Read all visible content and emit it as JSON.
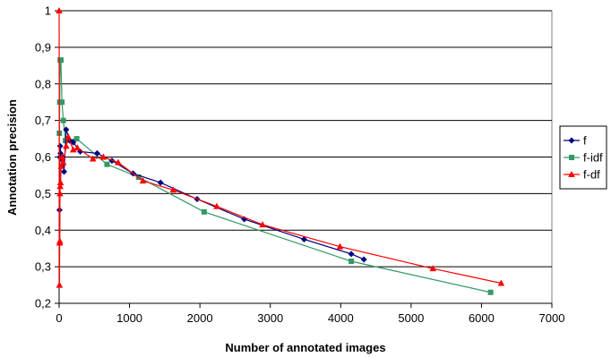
{
  "chart_data": {
    "type": "scatter",
    "xlabel": "Number of annotated images",
    "ylabel": "Annotation precision",
    "xlim": [
      0,
      7000
    ],
    "ylim": [
      0.2,
      1
    ],
    "x_ticks": [
      0,
      1000,
      2000,
      3000,
      4000,
      5000,
      6000,
      7000
    ],
    "x_tick_labels": [
      "0",
      "1000",
      "2000",
      "3000",
      "4000",
      "5000",
      "6000",
      "7000"
    ],
    "y_ticks": [
      0.2,
      0.3,
      0.4,
      0.5,
      0.6,
      0.7,
      0.8,
      0.9,
      1.0
    ],
    "y_tick_labels": [
      "0,2",
      "0,3",
      "0,4",
      "0,5",
      "0,6",
      "0,7",
      "0,8",
      "0,9",
      "1"
    ],
    "grid": "horizontal",
    "legend_position": "right",
    "series": [
      {
        "name": "f",
        "color": "#00007f",
        "marker": "diamond",
        "points": [
          [
            5,
            0.455
          ],
          [
            10,
            0.6
          ],
          [
            15,
            0.63
          ],
          [
            20,
            0.61
          ],
          [
            30,
            0.595
          ],
          [
            50,
            0.6
          ],
          [
            70,
            0.56
          ],
          [
            100,
            0.675
          ],
          [
            150,
            0.645
          ],
          [
            200,
            0.64
          ],
          [
            300,
            0.615
          ],
          [
            540,
            0.61
          ],
          [
            750,
            0.59
          ],
          [
            1050,
            0.555
          ],
          [
            1440,
            0.53
          ],
          [
            1960,
            0.485
          ],
          [
            2630,
            0.43
          ],
          [
            3480,
            0.375
          ],
          [
            4150,
            0.335
          ],
          [
            4330,
            0.32
          ]
        ]
      },
      {
        "name": "f-idf",
        "color": "#339966",
        "marker": "square",
        "points": [
          [
            3,
            0.665
          ],
          [
            8,
            0.75
          ],
          [
            15,
            0.865
          ],
          [
            25,
            0.865
          ],
          [
            40,
            0.75
          ],
          [
            60,
            0.7
          ],
          [
            90,
            0.645
          ],
          [
            250,
            0.65
          ],
          [
            680,
            0.58
          ],
          [
            1130,
            0.545
          ],
          [
            2060,
            0.45
          ],
          [
            4150,
            0.315
          ],
          [
            6130,
            0.23
          ]
        ]
      },
      {
        "name": "f-df",
        "color": "#ff0000",
        "marker": "triangle",
        "points": [
          [
            0,
            1.0
          ],
          [
            5,
            0.25
          ],
          [
            8,
            0.365
          ],
          [
            10,
            0.37
          ],
          [
            12,
            0.5
          ],
          [
            15,
            0.52
          ],
          [
            20,
            0.53
          ],
          [
            30,
            0.575
          ],
          [
            40,
            0.6
          ],
          [
            60,
            0.585
          ],
          [
            100,
            0.63
          ],
          [
            130,
            0.655
          ],
          [
            200,
            0.62
          ],
          [
            260,
            0.625
          ],
          [
            480,
            0.595
          ],
          [
            630,
            0.6
          ],
          [
            840,
            0.585
          ],
          [
            1190,
            0.535
          ],
          [
            1620,
            0.51
          ],
          [
            2240,
            0.465
          ],
          [
            2890,
            0.415
          ],
          [
            3990,
            0.355
          ],
          [
            5310,
            0.295
          ],
          [
            6280,
            0.255
          ]
        ]
      }
    ]
  }
}
